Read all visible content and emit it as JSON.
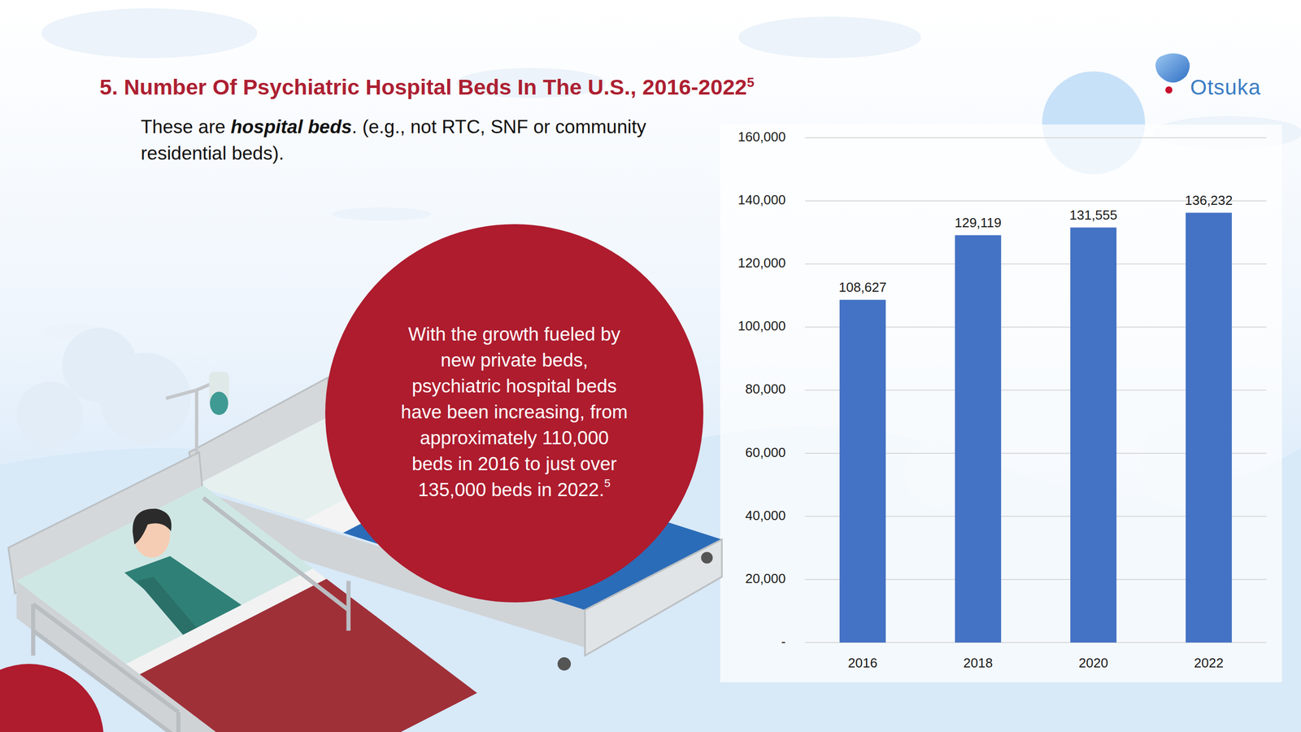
{
  "header": {
    "title": "5. Number Of Psychiatric Hospital Beds In The U.S., 2016-2022",
    "title_footnote": "5",
    "note": {
      "before": "These are ",
      "emphasis": "hospital beds",
      "after": ". (e.g., not RTC, SNF or community residential beds)."
    }
  },
  "brand": {
    "name": "Otsuka"
  },
  "callout": {
    "lines": [
      "With the growth fueled by",
      "new private beds,",
      "psychiatric hospital beds",
      "have been increasing, from",
      "approximately 110,000",
      "beds in 2016 to just over",
      "135,000 beds in 2022."
    ],
    "footnote": "5"
  },
  "chart_data": {
    "type": "bar",
    "categories": [
      "2016",
      "2018",
      "2020",
      "2022"
    ],
    "values": [
      108627,
      129119,
      131555,
      136232
    ],
    "value_labels": [
      "108,627",
      "129,119",
      "131,555",
      "136,232"
    ],
    "color": "#4472c4",
    "ylim": [
      0,
      160000
    ],
    "yticks": [
      {
        "value": 0,
        "label": "-"
      },
      {
        "value": 20000,
        "label": "20,000"
      },
      {
        "value": 40000,
        "label": "40,000"
      },
      {
        "value": 60000,
        "label": "60,000"
      },
      {
        "value": 80000,
        "label": "80,000"
      },
      {
        "value": 100000,
        "label": "100,000"
      },
      {
        "value": 120000,
        "label": "120,000"
      },
      {
        "value": 140000,
        "label": "140,000"
      },
      {
        "value": 160000,
        "label": "160,000"
      }
    ],
    "grid": true,
    "data_labels": true
  }
}
